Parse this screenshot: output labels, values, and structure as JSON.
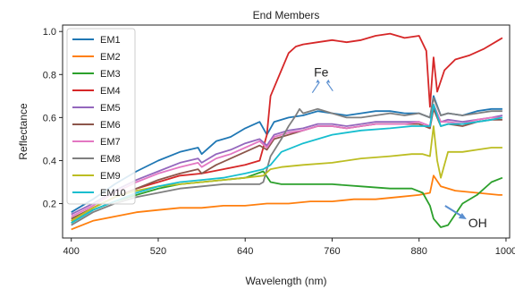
{
  "chart_data": {
    "type": "line",
    "title": "End Members",
    "xlabel": "Wavelength (nm)",
    "ylabel": "Reflectance",
    "xlim": [
      388,
      1005
    ],
    "ylim": [
      0.04,
      1.03
    ],
    "xticks": [
      400,
      520,
      640,
      760,
      880,
      1000
    ],
    "yticks": [
      0.2,
      0.4,
      0.6,
      0.8,
      1.0
    ],
    "xtick_labels": [
      "400",
      "520",
      "640",
      "760",
      "880",
      "1000"
    ],
    "ytick_labels": [
      "0.2",
      "0.4",
      "0.6",
      "0.8",
      "1.0"
    ],
    "grid": false,
    "legend_position": "upper-left",
    "annotations": [
      {
        "text": "Fe",
        "x": 745,
        "y": 0.79
      },
      {
        "text": "OH",
        "x": 948,
        "y": 0.09
      }
    ],
    "series": [
      {
        "name": "EM1",
        "color": "#1f77b4",
        "x": [
          400,
          430,
          460,
          490,
          520,
          550,
          575,
          580,
          600,
          620,
          640,
          660,
          670,
          680,
          700,
          720,
          740,
          760,
          780,
          800,
          820,
          840,
          860,
          880,
          895,
          900,
          910,
          920,
          940,
          960,
          980,
          995
        ],
        "y": [
          0.16,
          0.22,
          0.29,
          0.35,
          0.4,
          0.44,
          0.46,
          0.43,
          0.49,
          0.51,
          0.55,
          0.58,
          0.52,
          0.58,
          0.6,
          0.61,
          0.63,
          0.62,
          0.61,
          0.62,
          0.63,
          0.63,
          0.62,
          0.62,
          0.6,
          0.7,
          0.61,
          0.62,
          0.61,
          0.63,
          0.64,
          0.64
        ]
      },
      {
        "name": "EM2",
        "color": "#ff7f0e",
        "x": [
          400,
          430,
          460,
          490,
          520,
          550,
          580,
          610,
          640,
          670,
          700,
          730,
          760,
          790,
          820,
          850,
          880,
          895,
          900,
          910,
          930,
          960,
          990,
          995
        ],
        "y": [
          0.08,
          0.12,
          0.14,
          0.16,
          0.17,
          0.18,
          0.18,
          0.19,
          0.19,
          0.2,
          0.2,
          0.21,
          0.21,
          0.22,
          0.22,
          0.23,
          0.24,
          0.25,
          0.33,
          0.28,
          0.26,
          0.25,
          0.24,
          0.24
        ]
      },
      {
        "name": "EM3",
        "color": "#2ca02c",
        "x": [
          400,
          430,
          460,
          490,
          520,
          550,
          580,
          610,
          640,
          665,
          675,
          690,
          720,
          760,
          800,
          840,
          870,
          885,
          895,
          900,
          910,
          920,
          940,
          960,
          980,
          995
        ],
        "y": [
          0.11,
          0.17,
          0.21,
          0.24,
          0.27,
          0.29,
          0.3,
          0.31,
          0.32,
          0.35,
          0.3,
          0.29,
          0.29,
          0.29,
          0.28,
          0.27,
          0.27,
          0.25,
          0.19,
          0.13,
          0.09,
          0.1,
          0.2,
          0.24,
          0.3,
          0.32
        ]
      },
      {
        "name": "EM4",
        "color": "#d62728",
        "x": [
          400,
          430,
          460,
          490,
          520,
          550,
          580,
          610,
          640,
          660,
          670,
          675,
          690,
          700,
          710,
          720,
          740,
          760,
          780,
          800,
          820,
          840,
          860,
          880,
          890,
          895,
          900,
          905,
          915,
          930,
          950,
          970,
          990,
          995
        ],
        "y": [
          0.12,
          0.18,
          0.23,
          0.27,
          0.3,
          0.33,
          0.34,
          0.36,
          0.38,
          0.4,
          0.52,
          0.7,
          0.82,
          0.9,
          0.93,
          0.94,
          0.95,
          0.96,
          0.95,
          0.96,
          0.98,
          0.99,
          0.97,
          0.98,
          0.91,
          0.65,
          0.88,
          0.72,
          0.82,
          0.87,
          0.89,
          0.92,
          0.96,
          0.97
        ]
      },
      {
        "name": "EM5",
        "color": "#9467bd",
        "x": [
          400,
          430,
          460,
          490,
          520,
          550,
          575,
          580,
          600,
          620,
          640,
          660,
          670,
          680,
          700,
          720,
          740,
          760,
          780,
          800,
          820,
          840,
          860,
          880,
          895,
          900,
          910,
          920,
          940,
          960,
          980,
          995
        ],
        "y": [
          0.15,
          0.2,
          0.26,
          0.31,
          0.35,
          0.39,
          0.41,
          0.39,
          0.43,
          0.45,
          0.48,
          0.5,
          0.47,
          0.52,
          0.54,
          0.55,
          0.57,
          0.57,
          0.56,
          0.57,
          0.58,
          0.58,
          0.58,
          0.58,
          0.56,
          0.66,
          0.58,
          0.59,
          0.58,
          0.59,
          0.6,
          0.61
        ]
      },
      {
        "name": "EM6",
        "color": "#8c564b",
        "x": [
          400,
          430,
          460,
          490,
          520,
          550,
          575,
          580,
          600,
          620,
          640,
          660,
          670,
          680,
          700,
          720,
          740,
          760,
          780,
          800,
          820,
          840,
          860,
          880,
          895,
          900,
          910,
          920,
          940,
          960,
          980,
          995
        ],
        "y": [
          0.13,
          0.18,
          0.23,
          0.27,
          0.31,
          0.34,
          0.36,
          0.34,
          0.38,
          0.41,
          0.44,
          0.47,
          0.45,
          0.5,
          0.52,
          0.54,
          0.56,
          0.56,
          0.55,
          0.56,
          0.57,
          0.57,
          0.57,
          0.57,
          0.55,
          0.64,
          0.56,
          0.57,
          0.56,
          0.58,
          0.59,
          0.59
        ]
      },
      {
        "name": "EM7",
        "color": "#e377c2",
        "x": [
          400,
          430,
          460,
          490,
          520,
          550,
          575,
          580,
          600,
          620,
          640,
          660,
          670,
          680,
          700,
          720,
          740,
          760,
          780,
          800,
          820,
          840,
          860,
          880,
          895,
          900,
          910,
          920,
          940,
          960,
          980,
          995
        ],
        "y": [
          0.14,
          0.19,
          0.25,
          0.3,
          0.34,
          0.37,
          0.39,
          0.37,
          0.41,
          0.43,
          0.46,
          0.49,
          0.46,
          0.51,
          0.53,
          0.54,
          0.56,
          0.56,
          0.55,
          0.56,
          0.57,
          0.57,
          0.57,
          0.58,
          0.56,
          0.66,
          0.58,
          0.58,
          0.57,
          0.59,
          0.6,
          0.6
        ]
      },
      {
        "name": "EM8",
        "color": "#7f7f7f",
        "x": [
          400,
          430,
          460,
          490,
          520,
          550,
          580,
          610,
          630,
          650,
          660,
          665,
          670,
          675,
          690,
          700,
          710,
          715,
          720,
          740,
          760,
          780,
          800,
          820,
          840,
          860,
          880,
          895,
          900,
          910,
          920,
          940,
          960,
          980,
          995
        ],
        "y": [
          0.1,
          0.16,
          0.2,
          0.23,
          0.25,
          0.27,
          0.28,
          0.29,
          0.29,
          0.29,
          0.29,
          0.3,
          0.36,
          0.42,
          0.5,
          0.56,
          0.61,
          0.64,
          0.62,
          0.64,
          0.62,
          0.6,
          0.6,
          0.61,
          0.62,
          0.61,
          0.62,
          0.6,
          0.69,
          0.61,
          0.62,
          0.61,
          0.62,
          0.63,
          0.63
        ]
      },
      {
        "name": "EM9",
        "color": "#bcbd22",
        "x": [
          400,
          430,
          460,
          490,
          520,
          550,
          580,
          610,
          640,
          665,
          675,
          690,
          720,
          760,
          800,
          840,
          870,
          885,
          895,
          900,
          905,
          910,
          920,
          940,
          960,
          980,
          995
        ],
        "y": [
          0.12,
          0.18,
          0.23,
          0.26,
          0.28,
          0.29,
          0.3,
          0.31,
          0.32,
          0.33,
          0.36,
          0.37,
          0.38,
          0.39,
          0.41,
          0.42,
          0.43,
          0.43,
          0.42,
          0.56,
          0.4,
          0.32,
          0.44,
          0.44,
          0.45,
          0.46,
          0.46
        ]
      },
      {
        "name": "EM10",
        "color": "#17becf",
        "x": [
          400,
          430,
          460,
          490,
          520,
          550,
          580,
          610,
          640,
          665,
          675,
          690,
          720,
          760,
          800,
          840,
          870,
          885,
          895,
          900,
          910,
          920,
          940,
          960,
          980,
          995
        ],
        "y": [
          0.11,
          0.17,
          0.21,
          0.25,
          0.28,
          0.3,
          0.31,
          0.32,
          0.34,
          0.36,
          0.38,
          0.44,
          0.48,
          0.52,
          0.54,
          0.55,
          0.56,
          0.56,
          0.56,
          0.66,
          0.56,
          0.57,
          0.57,
          0.58,
          0.59,
          0.6
        ]
      }
    ]
  }
}
